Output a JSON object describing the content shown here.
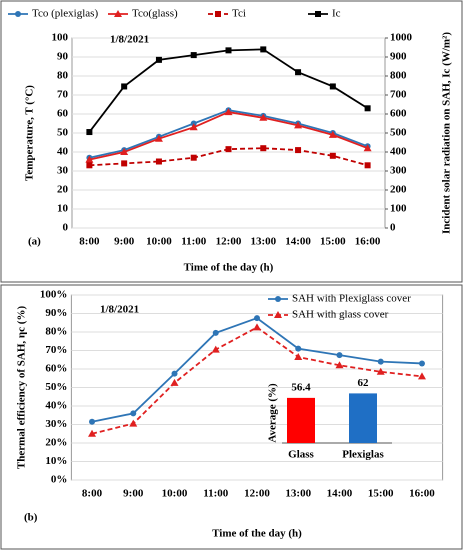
{
  "chart_data": [
    {
      "type": "line",
      "annotation": "1/8/2021",
      "panel_label": "(a)",
      "legend": "top",
      "x_label": "Time of the day (h)",
      "y_label": "Temperature, T (°C)",
      "y2_label": "Incident solar radiation on SAH, Ic (W/m²)",
      "categories": [
        "8:00",
        "9:00",
        "10:00",
        "11:00",
        "12:00",
        "13:00",
        "14:00",
        "15:00",
        "16:00"
      ],
      "ylim": [
        0,
        100
      ],
      "yticks": [
        0,
        10,
        20,
        30,
        40,
        50,
        60,
        70,
        80,
        90,
        100
      ],
      "y2lim": [
        0,
        1000
      ],
      "y2ticks": [
        0,
        100,
        200,
        300,
        400,
        500,
        600,
        700,
        800,
        900,
        1000
      ],
      "series": [
        {
          "name": "Tco (plexiglas)",
          "color": "#2e75b6",
          "marker": "circle",
          "line_style": "solid",
          "values": [
            37,
            41,
            48,
            55,
            62,
            59,
            55,
            50,
            43
          ]
        },
        {
          "name": "Tco(glass)",
          "color": "#e02020",
          "marker": "triangle",
          "line_style": "solid",
          "values": [
            36,
            40,
            47,
            53,
            61,
            58,
            54,
            49,
            42
          ]
        },
        {
          "name": "Tci",
          "color": "#c00000",
          "marker": "square",
          "line_style": "dashed",
          "values": [
            33,
            34,
            35,
            37,
            41.5,
            42,
            41,
            38,
            33
          ]
        },
        {
          "name": "Ic",
          "color": "#000000",
          "marker": "square",
          "line_style": "solid",
          "axis": "y2",
          "values": [
            505,
            745,
            885,
            910,
            935,
            940,
            820,
            745,
            630
          ]
        }
      ]
    },
    {
      "type": "line",
      "annotation": "1/8/2021",
      "panel_label": "(b)",
      "legend": "upper right",
      "x_label": "Time of the day (h)",
      "y_label": "Thermal efficiency of SAH, ηc (%)",
      "categories": [
        "8:00",
        "9:00",
        "10:00",
        "11:00",
        "12:00",
        "13:00",
        "14:00",
        "15:00",
        "16:00"
      ],
      "ylim": [
        0,
        100
      ],
      "yticks": [
        {
          "value": 0,
          "label": "0%"
        },
        {
          "value": 10,
          "label": "10%"
        },
        {
          "value": 20,
          "label": "20%"
        },
        {
          "value": 30,
          "label": "30%"
        },
        {
          "value": 40,
          "label": "40%"
        },
        {
          "value": 50,
          "label": "50%"
        },
        {
          "value": 60,
          "label": "60%"
        },
        {
          "value": 70,
          "label": "70%"
        },
        {
          "value": 80,
          "label": "80%"
        },
        {
          "value": 90,
          "label": "90%"
        },
        {
          "value": 100,
          "label": "100%"
        }
      ],
      "series": [
        {
          "name": "SAH with Plexiglass cover",
          "color": "#2e75b6",
          "marker": "circle",
          "line_style": "solid",
          "values": [
            31.5,
            36,
            57.5,
            79.5,
            87.5,
            71,
            67.5,
            64,
            63
          ]
        },
        {
          "name": "SAH with glass cover",
          "color": "#e02020",
          "marker": "triangle",
          "line_style": "dashed",
          "values": [
            25,
            30.5,
            52.5,
            70.5,
            82.5,
            66.5,
            62,
            58.5,
            56
          ]
        }
      ]
    },
    {
      "type": "bar",
      "y_label": "Average (%)",
      "categories": [
        "Glass",
        "Plexiglas"
      ],
      "values": [
        56.4,
        62
      ],
      "colors": [
        "#ff0000",
        "#1f6fc5"
      ],
      "ylim": [
        0,
        70
      ]
    }
  ]
}
